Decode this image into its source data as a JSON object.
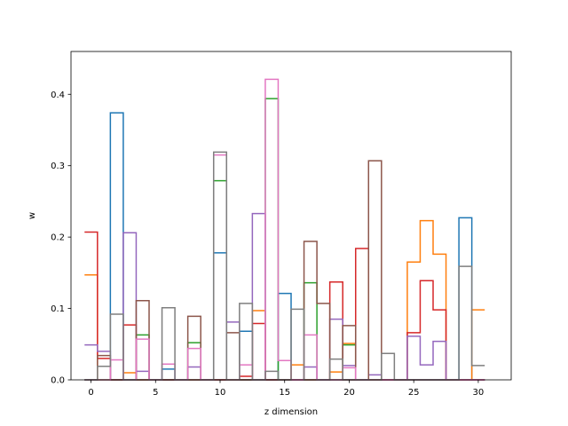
{
  "chart_data": {
    "type": "step",
    "xlabel": "z dimension",
    "ylabel": "w",
    "xlim": [
      -1.55,
      32.55
    ],
    "ylim": [
      0,
      0.46
    ],
    "xticks": [
      0,
      5,
      10,
      15,
      20,
      25,
      30
    ],
    "yticks": [
      0.0,
      0.1,
      0.2,
      0.3,
      0.4
    ],
    "ytick_labels": [
      "0.0",
      "0.1",
      "0.2",
      "0.3",
      "0.4"
    ],
    "grid": false,
    "series": [
      {
        "color": "#1f77b4",
        "values": [
          0,
          0,
          0.374,
          0,
          0,
          0,
          0.015,
          0,
          0,
          0,
          0.178,
          0,
          0.068,
          0,
          0,
          0.121,
          0,
          0,
          0,
          0,
          0,
          0,
          0,
          0,
          0,
          0,
          0,
          0,
          0,
          0.227,
          0
        ]
      },
      {
        "color": "#ff7f0e",
        "values": [
          0.147,
          0,
          0,
          0.01,
          0,
          0,
          0,
          0,
          0,
          0,
          0,
          0,
          0,
          0.097,
          0,
          0,
          0.021,
          0,
          0,
          0.011,
          0.051,
          0,
          0,
          0,
          0,
          0.165,
          0.223,
          0.176,
          0,
          0,
          0.098
        ]
      },
      {
        "color": "#2ca02c",
        "values": [
          0,
          0,
          0,
          0,
          0.063,
          0,
          0,
          0,
          0.052,
          0,
          0.279,
          0,
          0,
          0,
          0.394,
          0,
          0,
          0.136,
          0,
          0,
          0.049,
          0,
          0,
          0,
          0,
          0,
          0,
          0,
          0,
          0,
          0
        ]
      },
      {
        "color": "#d62728",
        "values": [
          0.207,
          0.03,
          0,
          0.077,
          0,
          0,
          0,
          0,
          0,
          0,
          0,
          0,
          0.005,
          0.079,
          0,
          0,
          0,
          0,
          0,
          0.137,
          0,
          0.184,
          0,
          0,
          0,
          0.066,
          0.139,
          0.098,
          0,
          0,
          0
        ]
      },
      {
        "color": "#9467bd",
        "values": [
          0.049,
          0.04,
          0,
          0.206,
          0.012,
          0,
          0,
          0,
          0.018,
          0,
          0,
          0.081,
          0,
          0.233,
          0,
          0,
          0,
          0.018,
          0,
          0.085,
          0.02,
          0,
          0.007,
          0,
          0,
          0.061,
          0.021,
          0.054,
          0,
          0,
          0
        ]
      },
      {
        "color": "#8c564b",
        "values": [
          0,
          0.034,
          0,
          0,
          0.111,
          0,
          0,
          0,
          0.089,
          0,
          0,
          0.066,
          0,
          0,
          0,
          0,
          0,
          0.194,
          0.107,
          0,
          0.076,
          0,
          0.307,
          0,
          0,
          0,
          0,
          0,
          0,
          0,
          0
        ]
      },
      {
        "color": "#e377c2",
        "values": [
          0,
          0,
          0.028,
          0,
          0.057,
          0,
          0.022,
          0,
          0.044,
          0,
          0.315,
          0,
          0.021,
          0,
          0.421,
          0.027,
          0,
          0.063,
          0,
          0,
          0.017,
          0,
          0,
          0,
          0,
          0,
          0,
          0,
          0,
          0,
          0
        ]
      },
      {
        "color": "#7f7f7f",
        "values": [
          0,
          0.019,
          0.092,
          0,
          0,
          0,
          0.101,
          0,
          0,
          0,
          0.319,
          0,
          0.107,
          0,
          0.012,
          0,
          0.099,
          0,
          0,
          0.029,
          0,
          0,
          0,
          0.037,
          0,
          0,
          0,
          0,
          0,
          0.159,
          0.02
        ]
      }
    ]
  }
}
